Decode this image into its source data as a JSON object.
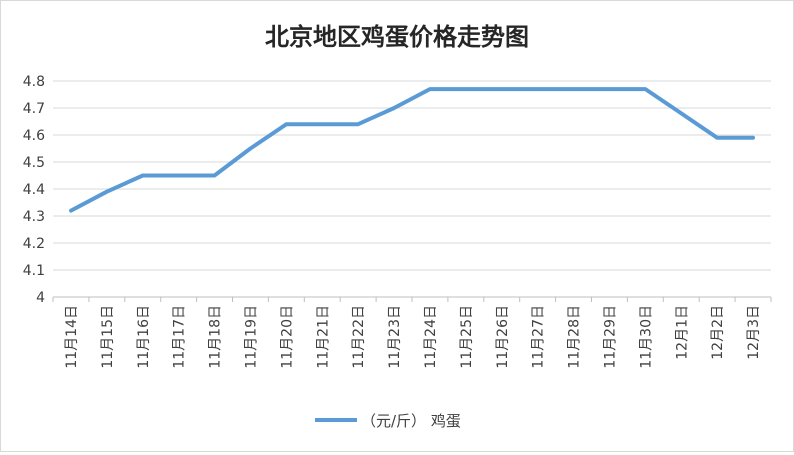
{
  "chart_data": {
    "type": "line",
    "title": "北京地区鸡蛋价格走势图",
    "xlabel": "",
    "ylabel": "",
    "categories": [
      "11月14日",
      "11月15日",
      "11月16日",
      "11月17日",
      "11月18日",
      "11月19日",
      "11月20日",
      "11月21日",
      "11月22日",
      "11月23日",
      "11月24日",
      "11月25日",
      "11月26日",
      "11月27日",
      "11月28日",
      "11月29日",
      "11月30日",
      "12月1日",
      "12月2日",
      "12月3日"
    ],
    "series": [
      {
        "name": "（元/斤） 鸡蛋",
        "color": "#5b9bd5",
        "values": [
          4.32,
          4.39,
          4.45,
          4.45,
          4.45,
          4.55,
          4.64,
          4.64,
          4.64,
          4.7,
          4.77,
          4.77,
          4.77,
          4.77,
          4.77,
          4.77,
          4.77,
          4.68,
          4.59,
          4.59
        ]
      }
    ],
    "ylim": [
      4,
      4.8
    ],
    "yticks": [
      "4",
      "4.1",
      "4.2",
      "4.3",
      "4.4",
      "4.5",
      "4.6",
      "4.7",
      "4.8"
    ],
    "grid": true,
    "legend_position": "bottom"
  }
}
